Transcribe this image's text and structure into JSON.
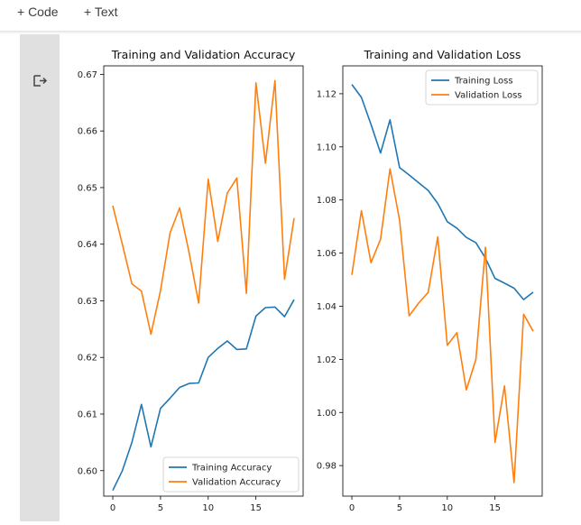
{
  "toolbar": {
    "code_label": "+ Code",
    "text_label": "+ Text"
  },
  "cell": {
    "output_icon": "output-arrow-icon"
  },
  "colors": {
    "training": "#1f77b4",
    "validation": "#ff7f0e"
  },
  "chart_data": [
    {
      "type": "line",
      "title": "Training and Validation Accuracy",
      "xlabel": "",
      "ylabel": "",
      "x": [
        0,
        1,
        2,
        3,
        4,
        5,
        6,
        7,
        8,
        9,
        10,
        11,
        12,
        13,
        14,
        15,
        16,
        17,
        18,
        19
      ],
      "xlim": [
        -0.95,
        19.95
      ],
      "ylim": [
        0.5955,
        0.6715
      ],
      "xticks": [
        0,
        5,
        10,
        15
      ],
      "xtick_labels": [
        "0",
        "5",
        "10",
        "15"
      ],
      "yticks": [
        0.6,
        0.61,
        0.62,
        0.63,
        0.64,
        0.65,
        0.66,
        0.67
      ],
      "ytick_labels": [
        "0.60",
        "0.61",
        "0.62",
        "0.63",
        "0.64",
        "0.65",
        "0.66",
        "0.67"
      ],
      "legend_position": "lower-right",
      "series": [
        {
          "name": "Training Accuracy",
          "color": "#1f77b4",
          "values": [
            0.5965,
            0.6,
            0.605,
            0.6117,
            0.6042,
            0.611,
            0.6128,
            0.6147,
            0.6154,
            0.6155,
            0.62,
            0.6216,
            0.6229,
            0.6214,
            0.6215,
            0.6273,
            0.6288,
            0.6289,
            0.6272,
            0.6302
          ]
        },
        {
          "name": "Validation Accuracy",
          "color": "#ff7f0e",
          "values": [
            0.6468,
            0.64,
            0.633,
            0.6317,
            0.6241,
            0.6318,
            0.642,
            0.6464,
            0.6385,
            0.6296,
            0.6515,
            0.6405,
            0.649,
            0.6517,
            0.6313,
            0.6685,
            0.6543,
            0.6689,
            0.6338,
            0.6446
          ]
        }
      ]
    },
    {
      "type": "line",
      "title": "Training and Validation Loss",
      "xlabel": "",
      "ylabel": "",
      "x": [
        0,
        1,
        2,
        3,
        4,
        5,
        6,
        7,
        8,
        9,
        10,
        11,
        12,
        13,
        14,
        15,
        16,
        17,
        18,
        19
      ],
      "xlim": [
        -0.95,
        19.95
      ],
      "ylim": [
        0.9685,
        1.1305
      ],
      "xticks": [
        0,
        5,
        10,
        15
      ],
      "xtick_labels": [
        "0",
        "5",
        "10",
        "15"
      ],
      "yticks": [
        0.98,
        1.0,
        1.02,
        1.04,
        1.06,
        1.08,
        1.1,
        1.12
      ],
      "ytick_labels": [
        "0.98",
        "1.00",
        "1.02",
        "1.04",
        "1.06",
        "1.08",
        "1.10",
        "1.12"
      ],
      "legend_position": "upper-right",
      "series": [
        {
          "name": "Training Loss",
          "color": "#1f77b4",
          "values": [
            1.1235,
            1.1186,
            1.1085,
            1.0977,
            1.1102,
            1.0922,
            1.0894,
            1.0865,
            1.0836,
            1.0787,
            1.0718,
            1.0694,
            1.0659,
            1.0639,
            1.0581,
            1.0505,
            1.0487,
            1.0468,
            1.0425,
            1.0453
          ]
        },
        {
          "name": "Validation Loss",
          "color": "#ff7f0e",
          "values": [
            1.0518,
            1.076,
            1.0564,
            1.0652,
            1.0917,
            1.0724,
            1.0364,
            1.0412,
            1.0452,
            1.0661,
            1.0253,
            1.03,
            1.0085,
            1.02,
            1.0622,
            0.9887,
            1.01,
            0.9736,
            1.037,
            1.0306
          ]
        }
      ]
    }
  ]
}
